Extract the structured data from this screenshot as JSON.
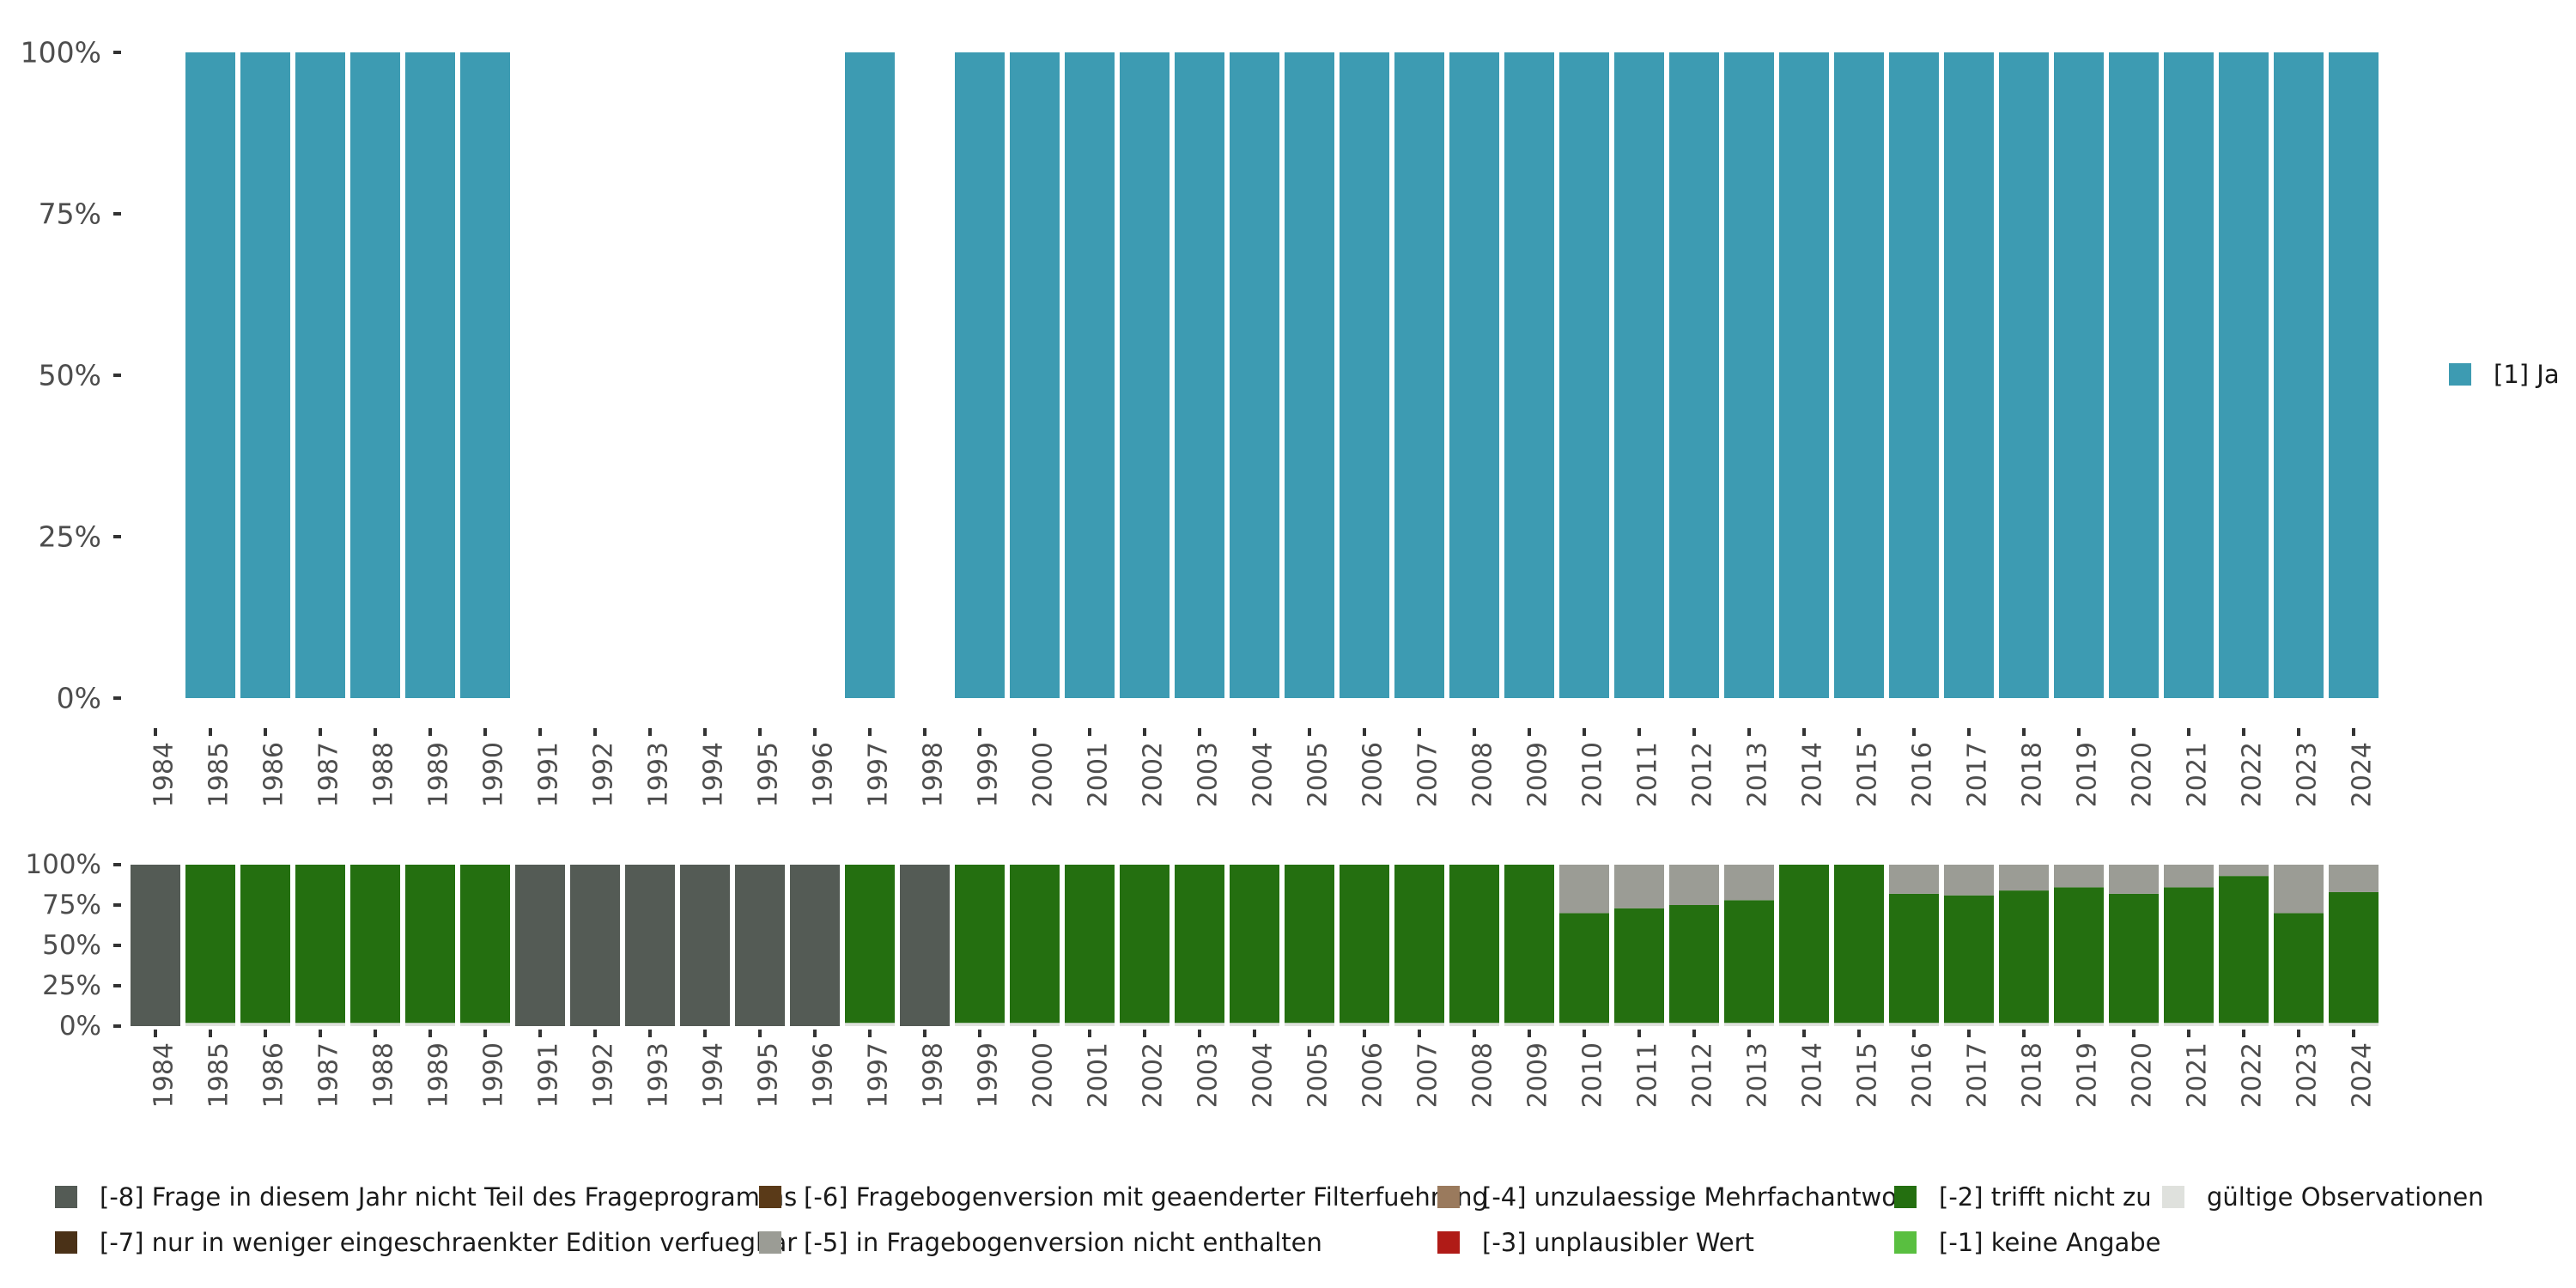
{
  "chart_data": [
    {
      "type": "bar",
      "stacked": true,
      "title": "",
      "xlabel": "",
      "ylabel": "",
      "ylim": [
        0,
        1
      ],
      "y_ticks": [
        "0%",
        "25%",
        "50%",
        "75%",
        "100%"
      ],
      "categories": [
        "1984",
        "1985",
        "1986",
        "1987",
        "1988",
        "1989",
        "1990",
        "1991",
        "1992",
        "1993",
        "1994",
        "1995",
        "1996",
        "1997",
        "1998",
        "1999",
        "2000",
        "2001",
        "2002",
        "2003",
        "2004",
        "2005",
        "2006",
        "2007",
        "2008",
        "2009",
        "2010",
        "2011",
        "2012",
        "2013",
        "2014",
        "2015",
        "2016",
        "2017",
        "2018",
        "2019",
        "2020",
        "2021",
        "2022",
        "2023",
        "2024"
      ],
      "series": [
        {
          "name": "[1] Ja",
          "color": "#3d9bb2",
          "values": [
            0,
            1,
            1,
            1,
            1,
            1,
            1,
            0,
            0,
            0,
            0,
            0,
            0,
            1,
            0,
            1,
            1,
            1,
            1,
            1,
            1,
            1,
            1,
            1,
            1,
            1,
            1,
            1,
            1,
            1,
            1,
            1,
            1,
            1,
            1,
            1,
            1,
            1,
            1,
            1,
            1
          ]
        }
      ],
      "legend": {
        "position": "right",
        "items": [
          {
            "label": "[1] Ja",
            "color": "#3d9bb2"
          }
        ]
      }
    },
    {
      "type": "bar",
      "stacked": true,
      "title": "",
      "xlabel": "",
      "ylabel": "",
      "ylim": [
        0,
        1
      ],
      "y_ticks": [
        "0%",
        "25%",
        "50%",
        "75%",
        "100%"
      ],
      "categories": [
        "1984",
        "1985",
        "1986",
        "1987",
        "1988",
        "1989",
        "1990",
        "1991",
        "1992",
        "1993",
        "1994",
        "1995",
        "1996",
        "1997",
        "1998",
        "1999",
        "2000",
        "2001",
        "2002",
        "2003",
        "2004",
        "2005",
        "2006",
        "2007",
        "2008",
        "2009",
        "2010",
        "2011",
        "2012",
        "2013",
        "2014",
        "2015",
        "2016",
        "2017",
        "2018",
        "2019",
        "2020",
        "2021",
        "2022",
        "2023",
        "2024"
      ],
      "series": [
        {
          "name": "gültige Observationen",
          "color": "#dfe1dd",
          "values": [
            0,
            0.02,
            0.02,
            0.02,
            0.02,
            0.02,
            0.02,
            0,
            0,
            0,
            0,
            0,
            0,
            0.02,
            0,
            0.02,
            0.02,
            0.02,
            0.02,
            0.02,
            0.02,
            0.02,
            0.02,
            0.02,
            0.02,
            0.02,
            0.02,
            0.02,
            0.02,
            0.02,
            0.02,
            0.02,
            0.02,
            0.02,
            0.02,
            0.02,
            0.02,
            0.02,
            0.02,
            0.02,
            0.02
          ]
        },
        {
          "name": "[-2] trifft nicht zu",
          "color": "#246f10",
          "values": [
            0,
            0.98,
            0.98,
            0.98,
            0.98,
            0.98,
            0.98,
            0,
            0,
            0,
            0,
            0,
            0,
            0.98,
            0,
            0.98,
            0.98,
            0.98,
            0.98,
            0.98,
            0.98,
            0.98,
            0.98,
            0.98,
            0.98,
            0.98,
            0.68,
            0.71,
            0.73,
            0.76,
            0.98,
            0.98,
            0.8,
            0.79,
            0.82,
            0.84,
            0.8,
            0.84,
            0.91,
            0.68,
            0.81
          ]
        },
        {
          "name": "[-5] in Fragebogenversion nicht enthalten",
          "color": "#9b9c95",
          "values": [
            0,
            0,
            0,
            0,
            0,
            0,
            0,
            0,
            0,
            0,
            0,
            0,
            0,
            0,
            0,
            0,
            0,
            0,
            0,
            0,
            0,
            0,
            0,
            0,
            0,
            0,
            0.3,
            0.27,
            0.25,
            0.22,
            0,
            0,
            0.18,
            0.19,
            0.16,
            0.14,
            0.18,
            0.14,
            0.07,
            0.3,
            0.17
          ]
        },
        {
          "name": "[-8] Frage in diesem Jahr nicht Teil des Frageprogramms",
          "color": "#545b55",
          "values": [
            1,
            0,
            0,
            0,
            0,
            0,
            0,
            1,
            1,
            1,
            1,
            1,
            1,
            0,
            1,
            0,
            0,
            0,
            0,
            0,
            0,
            0,
            0,
            0,
            0,
            0,
            0,
            0,
            0,
            0,
            0,
            0,
            0,
            0,
            0,
            0,
            0,
            0,
            0,
            0,
            0
          ]
        }
      ],
      "legend": {
        "position": "bottom",
        "items": [
          {
            "label": "[-8] Frage in diesem Jahr nicht Teil des Frageprogramms",
            "color": "#545b55"
          },
          {
            "label": "[-7] nur in weniger eingeschraenkter Edition verfuegbar",
            "color": "#4a3117"
          },
          {
            "label": "[-6] Fragebogenversion mit geaenderter Filterfuehrung",
            "color": "#5a3a18"
          },
          {
            "label": "[-5] in Fragebogenversion nicht enthalten",
            "color": "#9b9c95"
          },
          {
            "label": "[-4] unzulaessige Mehrfachantwort",
            "color": "#9a7a5d"
          },
          {
            "label": "[-3] unplausibler Wert",
            "color": "#b01b17"
          },
          {
            "label": "[-2] trifft nicht zu",
            "color": "#246f10"
          },
          {
            "label": "[-1] keine Angabe",
            "color": "#59bf40"
          },
          {
            "label": "gültige Observationen",
            "color": "#dfe1dd"
          }
        ]
      }
    }
  ]
}
